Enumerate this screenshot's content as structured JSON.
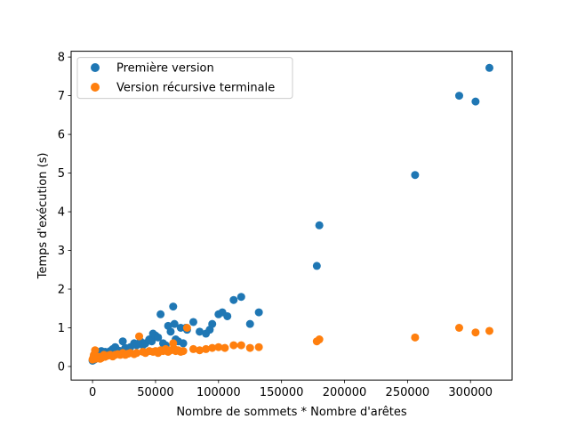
{
  "chart_data": {
    "type": "scatter",
    "xlabel": "Nombre de sommets * Nombre d'arêtes",
    "ylabel": "Temps d'exécution (s)",
    "xlim": [
      -17000,
      333000
    ],
    "ylim": [
      -0.35,
      8.15
    ],
    "xticks": [
      0,
      50000,
      100000,
      150000,
      200000,
      250000,
      300000
    ],
    "xtick_labels": [
      "0",
      "50000",
      "100000",
      "150000",
      "200000",
      "250000",
      "300000"
    ],
    "yticks": [
      0,
      1,
      2,
      3,
      4,
      5,
      6,
      7,
      8
    ],
    "ytick_labels": [
      "0",
      "1",
      "2",
      "3",
      "4",
      "5",
      "6",
      "7",
      "8"
    ],
    "grid": false,
    "legend_position": "top-left",
    "series": [
      {
        "name": "Première version",
        "color": "#1f77b4",
        "points": [
          [
            0,
            0.15
          ],
          [
            500,
            0.2
          ],
          [
            1000,
            0.25
          ],
          [
            1500,
            0.18
          ],
          [
            2000,
            0.3
          ],
          [
            2500,
            0.22
          ],
          [
            3000,
            0.28
          ],
          [
            4000,
            0.3
          ],
          [
            5000,
            0.25
          ],
          [
            6000,
            0.32
          ],
          [
            7000,
            0.4
          ],
          [
            8000,
            0.35
          ],
          [
            9000,
            0.3
          ],
          [
            10000,
            0.38
          ],
          [
            12000,
            0.35
          ],
          [
            14000,
            0.4
          ],
          [
            16000,
            0.45
          ],
          [
            18000,
            0.5
          ],
          [
            20000,
            0.42
          ],
          [
            22000,
            0.4
          ],
          [
            24000,
            0.65
          ],
          [
            26000,
            0.48
          ],
          [
            28000,
            0.45
          ],
          [
            30000,
            0.5
          ],
          [
            33000,
            0.6
          ],
          [
            35000,
            0.55
          ],
          [
            38000,
            0.65
          ],
          [
            40000,
            0.55
          ],
          [
            42000,
            0.6
          ],
          [
            45000,
            0.7
          ],
          [
            47000,
            0.65
          ],
          [
            48000,
            0.85
          ],
          [
            50000,
            0.8
          ],
          [
            52000,
            0.75
          ],
          [
            54000,
            1.35
          ],
          [
            56000,
            0.6
          ],
          [
            58000,
            0.55
          ],
          [
            60000,
            1.05
          ],
          [
            62000,
            0.9
          ],
          [
            64000,
            1.55
          ],
          [
            65000,
            1.1
          ],
          [
            66000,
            0.7
          ],
          [
            68000,
            0.65
          ],
          [
            70000,
            1.0
          ],
          [
            72000,
            0.6
          ],
          [
            74000,
            1.0
          ],
          [
            75000,
            0.95
          ],
          [
            80000,
            1.15
          ],
          [
            85000,
            0.9
          ],
          [
            90000,
            0.85
          ],
          [
            93000,
            0.95
          ],
          [
            95000,
            1.1
          ],
          [
            100000,
            1.35
          ],
          [
            103000,
            1.4
          ],
          [
            107000,
            1.3
          ],
          [
            112000,
            1.72
          ],
          [
            118000,
            1.8
          ],
          [
            125000,
            1.1
          ],
          [
            132000,
            1.4
          ],
          [
            178000,
            2.6
          ],
          [
            180000,
            3.65
          ],
          [
            256000,
            4.95
          ],
          [
            291000,
            7.0
          ],
          [
            304000,
            6.85
          ],
          [
            315000,
            7.72
          ]
        ]
      },
      {
        "name": "Version récursive terminale",
        "color": "#ff7f0e",
        "points": [
          [
            0,
            0.18
          ],
          [
            500,
            0.22
          ],
          [
            1000,
            0.3
          ],
          [
            1500,
            0.25
          ],
          [
            2000,
            0.42
          ],
          [
            2500,
            0.2
          ],
          [
            3000,
            0.25
          ],
          [
            4000,
            0.22
          ],
          [
            5000,
            0.25
          ],
          [
            6000,
            0.2
          ],
          [
            7000,
            0.22
          ],
          [
            8000,
            0.25
          ],
          [
            9000,
            0.3
          ],
          [
            10000,
            0.25
          ],
          [
            12000,
            0.28
          ],
          [
            14000,
            0.3
          ],
          [
            16000,
            0.26
          ],
          [
            18000,
            0.3
          ],
          [
            20000,
            0.32
          ],
          [
            22000,
            0.3
          ],
          [
            24000,
            0.35
          ],
          [
            26000,
            0.3
          ],
          [
            28000,
            0.33
          ],
          [
            30000,
            0.35
          ],
          [
            33000,
            0.32
          ],
          [
            35000,
            0.35
          ],
          [
            37000,
            0.78
          ],
          [
            40000,
            0.38
          ],
          [
            42000,
            0.35
          ],
          [
            45000,
            0.4
          ],
          [
            48000,
            0.38
          ],
          [
            50000,
            0.4
          ],
          [
            52000,
            0.35
          ],
          [
            54000,
            0.42
          ],
          [
            56000,
            0.4
          ],
          [
            58000,
            0.45
          ],
          [
            60000,
            0.38
          ],
          [
            62000,
            0.42
          ],
          [
            64000,
            0.6
          ],
          [
            65000,
            0.45
          ],
          [
            66000,
            0.4
          ],
          [
            68000,
            0.42
          ],
          [
            70000,
            0.38
          ],
          [
            72000,
            0.4
          ],
          [
            75000,
            1.0
          ],
          [
            80000,
            0.45
          ],
          [
            85000,
            0.42
          ],
          [
            90000,
            0.45
          ],
          [
            95000,
            0.48
          ],
          [
            100000,
            0.5
          ],
          [
            105000,
            0.48
          ],
          [
            112000,
            0.55
          ],
          [
            118000,
            0.55
          ],
          [
            125000,
            0.48
          ],
          [
            132000,
            0.5
          ],
          [
            178000,
            0.65
          ],
          [
            180000,
            0.7
          ],
          [
            256000,
            0.75
          ],
          [
            291000,
            1.0
          ],
          [
            304000,
            0.88
          ],
          [
            315000,
            0.92
          ]
        ]
      }
    ]
  }
}
